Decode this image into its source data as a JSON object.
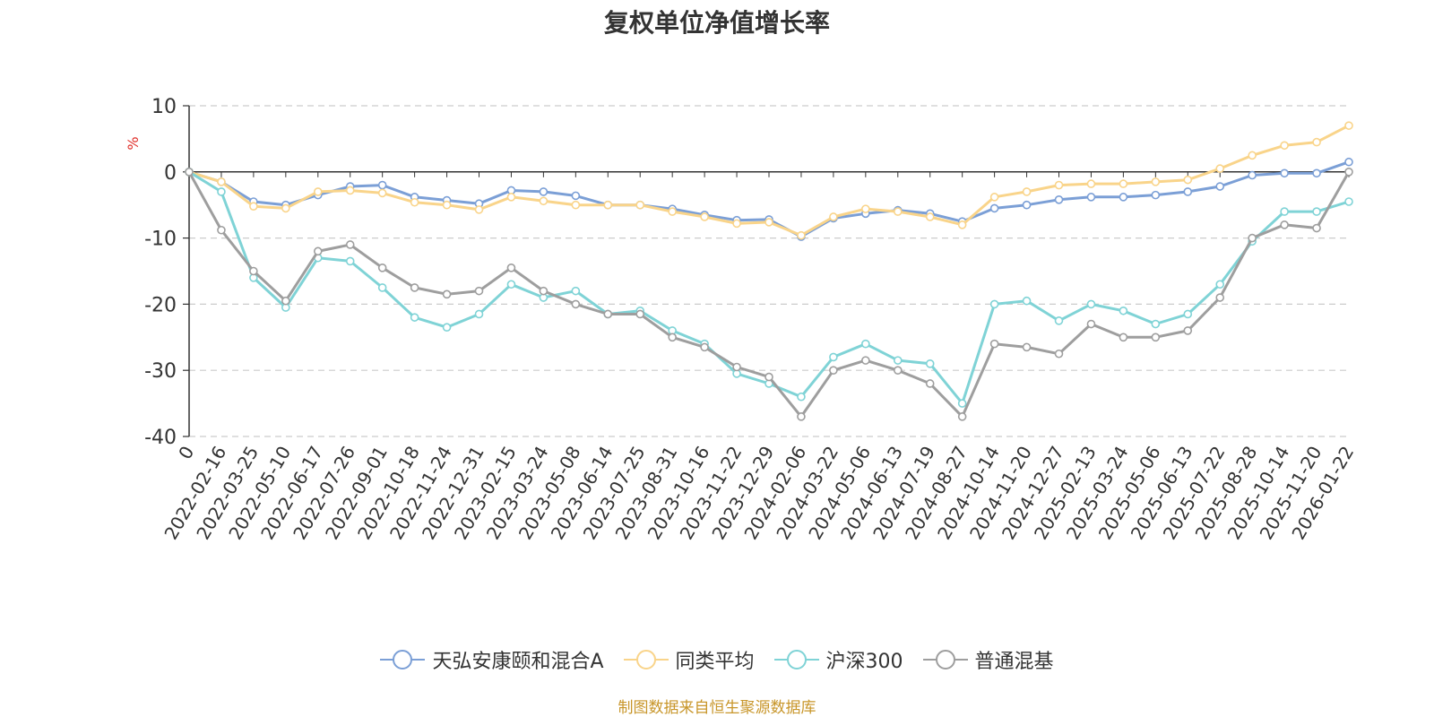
{
  "chart_data": {
    "type": "line",
    "title": "复权单位净值增长率",
    "ylabel": "%",
    "xlabel": "",
    "ylim": [
      -40,
      10
    ],
    "yticks": [
      10,
      0,
      -10,
      -20,
      -30,
      -40
    ],
    "grid": true,
    "legend_position": "bottom",
    "source": "制图数据来自恒生聚源数据库",
    "x": [
      "0",
      "2022-02-16",
      "2022-03-25",
      "2022-05-10",
      "2022-06-17",
      "2022-07-26",
      "2022-09-01",
      "2022-10-18",
      "2022-11-24",
      "2022-12-31",
      "2023-02-15",
      "2023-03-24",
      "2023-05-08",
      "2023-06-14",
      "2023-07-25",
      "2023-08-31",
      "2023-10-16",
      "2023-11-22",
      "2023-12-29",
      "2024-02-06",
      "2024-03-22",
      "2024-05-06",
      "2024-06-13",
      "2024-07-19",
      "2024-08-27",
      "2024-10-14",
      "2024-11-20",
      "2024-12-27",
      "2025-02-13",
      "2025-03-24",
      "2025-05-06",
      "2025-06-13",
      "2025-07-22",
      "2025-08-28",
      "2025-10-14",
      "2025-11-20",
      "2026-01-22"
    ],
    "series": [
      {
        "name": "天弘安康颐和混合A",
        "color": "#7b9fd6",
        "values": [
          0,
          -1.5,
          -4.5,
          -5.0,
          -3.5,
          -2.2,
          -2.0,
          -3.8,
          -4.3,
          -4.8,
          -2.8,
          -3.0,
          -3.6,
          -5.0,
          -5.0,
          -5.6,
          -6.5,
          -7.3,
          -7.2,
          -9.8,
          -7.0,
          -6.3,
          -5.8,
          -6.3,
          -7.5,
          -5.5,
          -5.0,
          -4.2,
          -3.8,
          -3.8,
          -3.5,
          -3.0,
          -2.2,
          -0.5,
          -0.2,
          -0.2,
          1.5
        ]
      },
      {
        "name": "同类平均",
        "color": "#f9d48a",
        "values": [
          0,
          -1.5,
          -5.2,
          -5.5,
          -3.0,
          -2.8,
          -3.2,
          -4.6,
          -5.0,
          -5.7,
          -3.8,
          -4.4,
          -5.0,
          -5.0,
          -5.0,
          -6.0,
          -6.8,
          -7.8,
          -7.6,
          -9.6,
          -6.8,
          -5.6,
          -6.0,
          -6.8,
          -8.0,
          -3.8,
          -3.0,
          -2.0,
          -1.8,
          -1.8,
          -1.5,
          -1.2,
          0.5,
          2.5,
          4.0,
          4.5,
          7.0
        ]
      },
      {
        "name": "沪深300",
        "color": "#7fd3d6",
        "values": [
          0,
          -3.0,
          -16.0,
          -20.5,
          -13.0,
          -13.5,
          -17.5,
          -22.0,
          -23.5,
          -21.5,
          -17.0,
          -19.0,
          -18.0,
          -21.5,
          -21.0,
          -24.0,
          -26.0,
          -30.5,
          -32.0,
          -34.0,
          -28.0,
          -26.0,
          -28.5,
          -29.0,
          -35.0,
          -20.0,
          -19.5,
          -22.5,
          -20.0,
          -21.0,
          -23.0,
          -21.5,
          -17.0,
          -10.5,
          -6.0,
          -6.0,
          -4.5
        ]
      },
      {
        "name": "普通混基",
        "color": "#9e9e9e",
        "values": [
          0,
          -8.8,
          -15.0,
          -19.5,
          -12.0,
          -11.0,
          -14.5,
          -17.5,
          -18.5,
          -18.0,
          -14.5,
          -18.0,
          -20.0,
          -21.5,
          -21.5,
          -25.0,
          -26.5,
          -29.5,
          -31.0,
          -37.0,
          -30.0,
          -28.5,
          -30.0,
          -32.0,
          -37.0,
          -26.0,
          -26.5,
          -27.5,
          -23.0,
          -25.0,
          -25.0,
          -24.0,
          -19.0,
          -10.0,
          -8.0,
          -8.5,
          0
        ]
      }
    ]
  }
}
